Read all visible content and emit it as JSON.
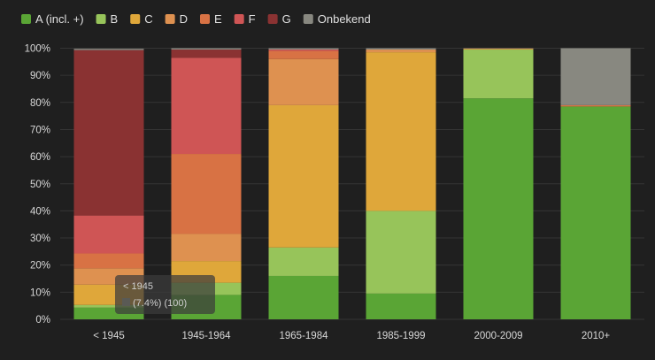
{
  "chart_data": {
    "type": "bar",
    "stacked": true,
    "categories": [
      "< 1945",
      "1945-1964",
      "1965-1984",
      "1985-1999",
      "2000-2009",
      "2010+"
    ],
    "series": [
      {
        "name": "A (incl. +)",
        "color": "#5aa535",
        "values": [
          4.3,
          9,
          16,
          9.5,
          81.5,
          78.5
        ]
      },
      {
        "name": "B",
        "color": "#97c45a",
        "values": [
          1,
          4.5,
          10.5,
          30.5,
          18,
          0
        ]
      },
      {
        "name": "C",
        "color": "#dfa73a",
        "values": [
          7.5,
          8,
          52.5,
          58.5,
          0.2,
          0
        ]
      },
      {
        "name": "D",
        "color": "#de9150",
        "values": [
          6,
          10,
          17,
          1,
          0.2,
          0
        ]
      },
      {
        "name": "E",
        "color": "#d87244",
        "values": [
          5.5,
          29.5,
          3,
          0,
          0,
          0.5
        ]
      },
      {
        "name": "F",
        "color": "#cf5555",
        "values": [
          14,
          35.5,
          0.5,
          0,
          0,
          0
        ]
      },
      {
        "name": "G",
        "color": "#8a3232",
        "values": [
          61,
          3,
          0,
          0,
          0,
          0
        ]
      },
      {
        "name": "Onbekend",
        "color": "#888880",
        "values": [
          0.5,
          0.5,
          0.5,
          0.5,
          0.1,
          21
        ]
      }
    ],
    "y_ticks": [
      "0%",
      "10%",
      "20%",
      "30%",
      "40%",
      "50%",
      "60%",
      "70%",
      "80%",
      "90%",
      "100%"
    ],
    "ylim": [
      0,
      100
    ],
    "grid": true,
    "legend_position": "top-left",
    "tooltip": {
      "title": "< 1945",
      "text": "(7.4%) (100)",
      "category_index": 0
    }
  }
}
